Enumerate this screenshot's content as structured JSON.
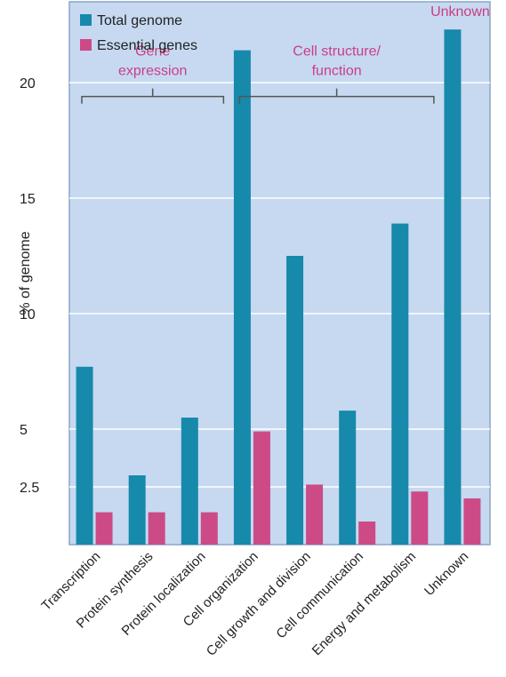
{
  "chart_data": {
    "type": "bar",
    "title": "",
    "xlabel": "",
    "ylabel": "% of genome",
    "ylim": [
      0,
      23.5
    ],
    "yticks": [
      2.5,
      5,
      10,
      15,
      20
    ],
    "grid": true,
    "legend_position": "top-left",
    "categories": [
      "Transcription",
      "Protein synthesis",
      "Protein localization",
      "Cell organization",
      "Cell growth and division",
      "Cell communication",
      "Energy and metabolism",
      "Unknown"
    ],
    "series": [
      {
        "name": "Total genome",
        "color": "#1789ab",
        "values": [
          7.7,
          3.0,
          5.5,
          21.4,
          12.5,
          5.8,
          13.9,
          22.3
        ]
      },
      {
        "name": "Essential genes",
        "color": "#cc4b87",
        "values": [
          1.4,
          1.4,
          1.4,
          4.9,
          2.6,
          1.0,
          2.3,
          2.0
        ]
      }
    ],
    "annotations": [
      {
        "text": [
          "Gene",
          "expression"
        ],
        "from_category": 0,
        "to_category": 2,
        "bracket_value": 19.4,
        "color": "#cc3d84"
      },
      {
        "text": [
          "Cell structure/",
          "function"
        ],
        "from_category": 3,
        "to_category": 6,
        "bracket_value": 19.4,
        "color": "#cc3d84"
      },
      {
        "text": [
          "Unknown"
        ],
        "category": 7,
        "value": 22.8,
        "color": "#cc3d84"
      }
    ]
  },
  "colors": {
    "plot_background": "#c6d9f1",
    "gridline": "#ffffff",
    "frame": "#8aa4c8"
  }
}
